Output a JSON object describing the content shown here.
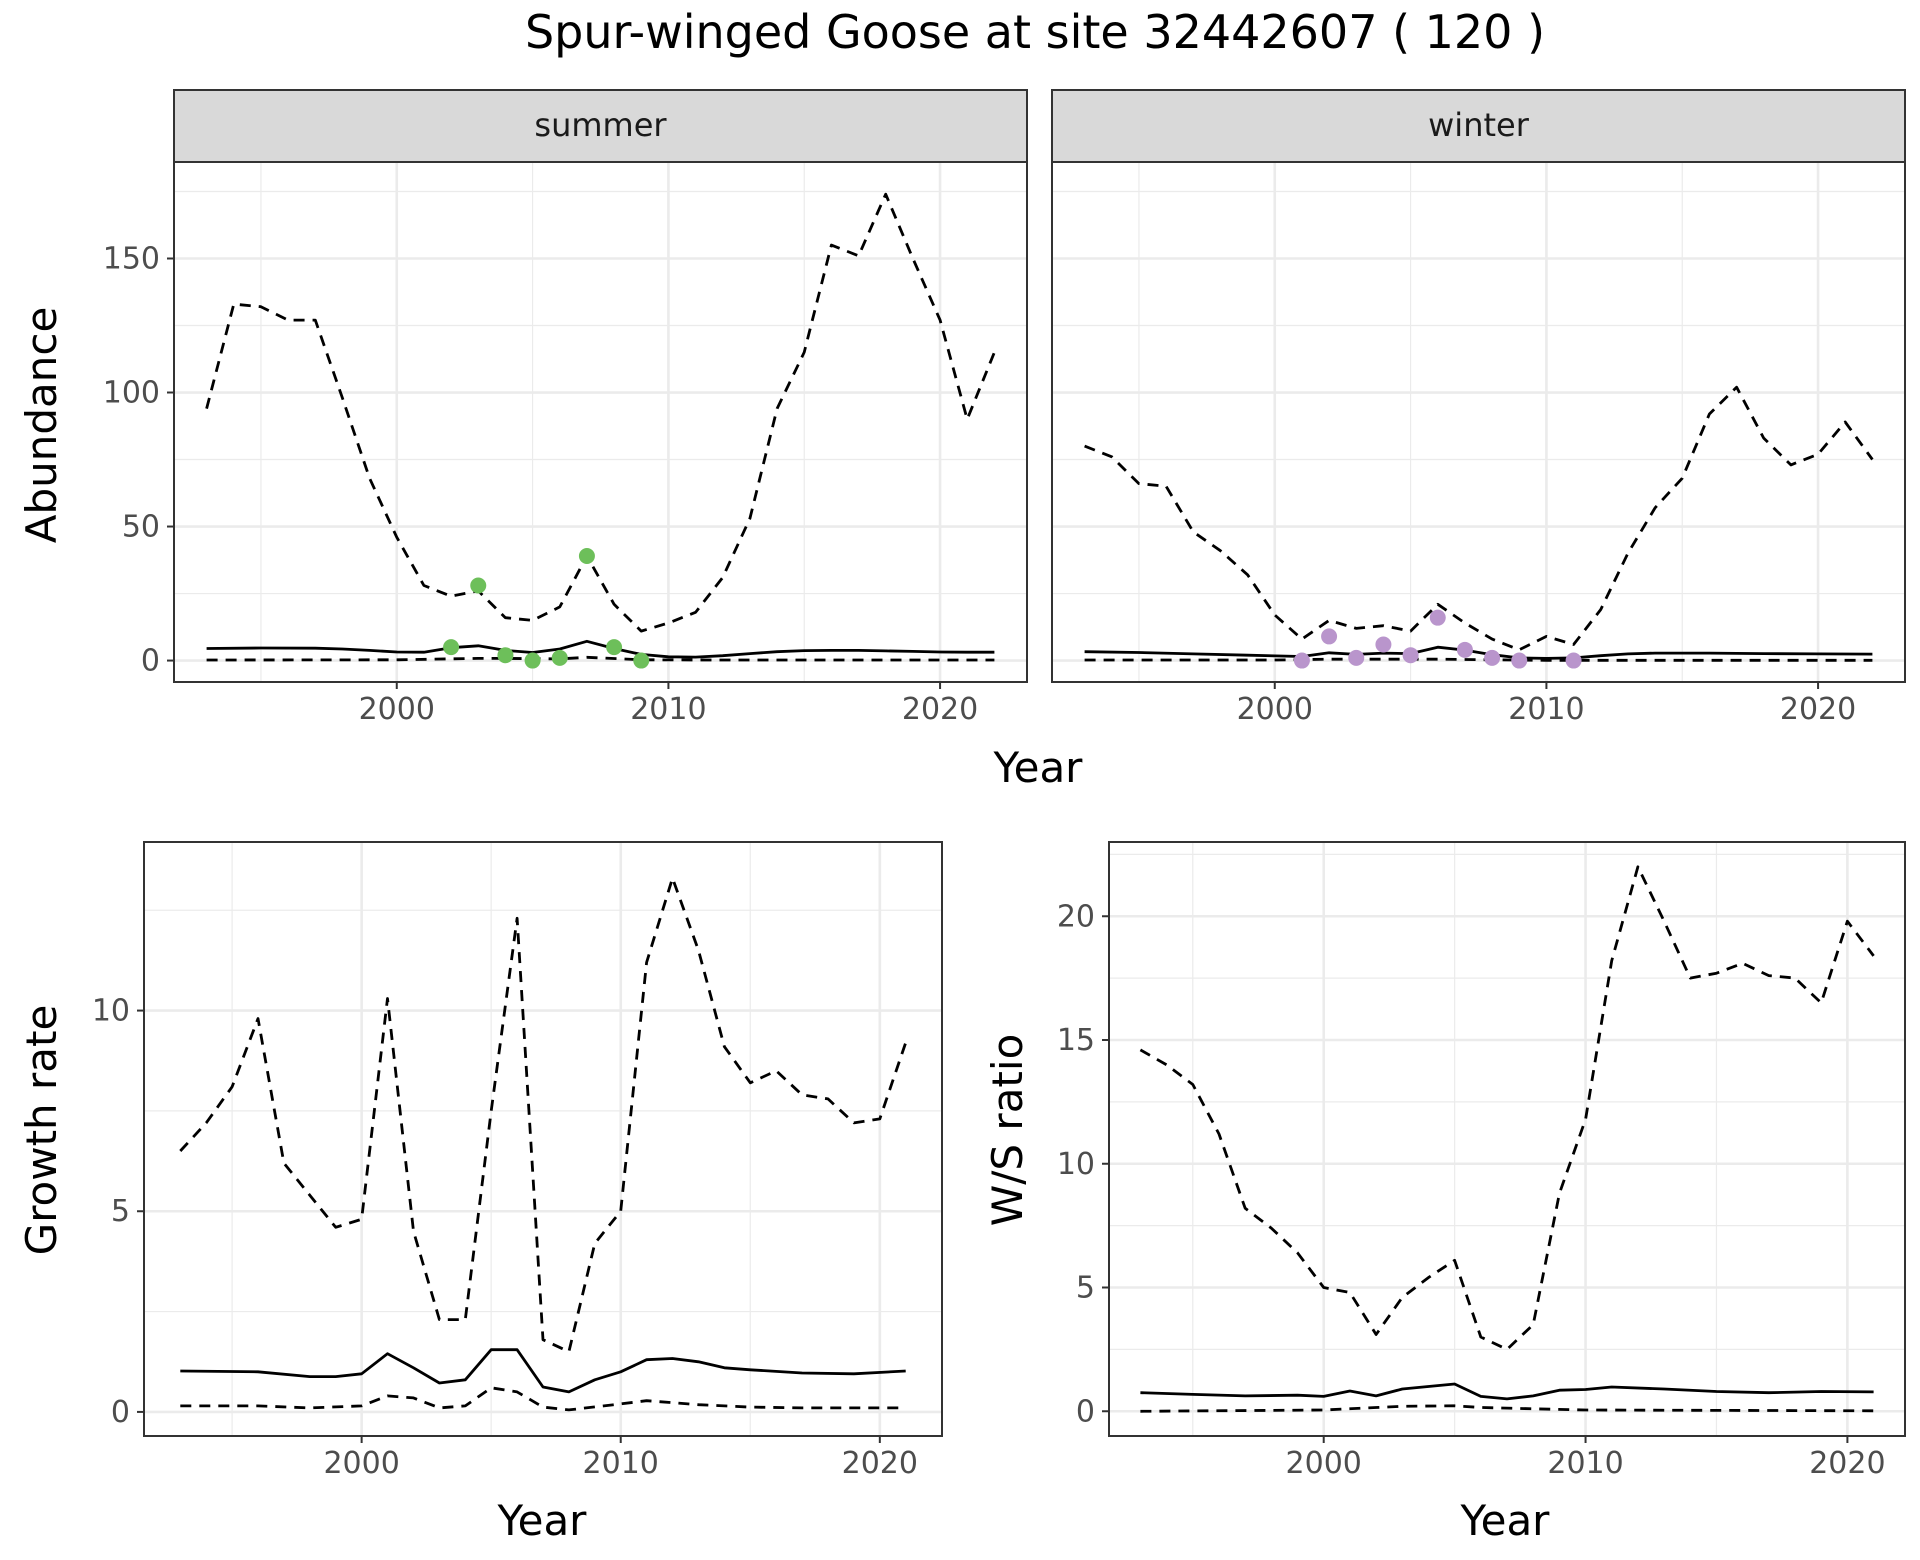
{
  "title": "Spur-winged Goose at site 32442607 ( 120 )",
  "colors": {
    "summer_points": "#6dbf5a",
    "winter_points": "#b995cc",
    "line": "#000000",
    "panel_border": "#333333",
    "strip_fill": "#d9d9d9",
    "grid": "#ebebeb"
  },
  "chart_data": [
    {
      "type": "line",
      "id": "abundance",
      "facets": [
        "summer",
        "winter"
      ],
      "xlabel": "Year",
      "ylabel": "Abundance",
      "xlim": [
        1991.8,
        2023.2
      ],
      "ylim": [
        -8,
        186
      ],
      "x_ticks": [
        2000,
        2010,
        2020
      ],
      "y_ticks": [
        0,
        50,
        100,
        150
      ],
      "grid": true,
      "panels": [
        {
          "facet": "summer",
          "points_color": "#6dbf5a",
          "series": [
            {
              "style": "solid",
              "x": [
                1993,
                1995,
                1997,
                1998,
                1999,
                2000,
                2001,
                2002,
                2003,
                2004,
                2005,
                2006,
                2007,
                2008,
                2009,
                2010,
                2011,
                2012,
                2013,
                2014,
                2015,
                2016,
                2017,
                2018,
                2019,
                2020,
                2021,
                2022
              ],
              "y": [
                4.5,
                4.7,
                4.6,
                4.3,
                3.8,
                3.2,
                3.1,
                4.8,
                5.5,
                3.8,
                3.0,
                4.3,
                7.2,
                4.5,
                2.3,
                1.4,
                1.3,
                1.8,
                2.6,
                3.3,
                3.7,
                3.8,
                3.8,
                3.6,
                3.4,
                3.2,
                3.1,
                3.1
              ]
            },
            {
              "style": "dashed",
              "x": [
                1993,
                1994,
                1995,
                1996,
                1997,
                1998,
                1999,
                2000,
                2001,
                2002,
                2003,
                2004,
                2005,
                2006,
                2007,
                2008,
                2009,
                2010,
                2011,
                2012,
                2013,
                2014,
                2015,
                2016,
                2017,
                2018,
                2019,
                2020,
                2021,
                2022
              ],
              "y": [
                94,
                133,
                132,
                127,
                127,
                98,
                68,
                46,
                28,
                24,
                26,
                16,
                15,
                20,
                39,
                21,
                11,
                14,
                18,
                31,
                53,
                94,
                115,
                155,
                151,
                174,
                150,
                127,
                90,
                115
              ]
            },
            {
              "style": "dashed",
              "x": [
                1993,
                2000,
                2003,
                2004,
                2006,
                2007,
                2009,
                2012,
                2022
              ],
              "y": [
                0.2,
                0.3,
                0.8,
                0.8,
                0.6,
                1.2,
                0.3,
                0.2,
                0.2
              ]
            }
          ],
          "points": {
            "x": [
              2002,
              2003,
              2004,
              2005,
              2006,
              2007,
              2008,
              2009
            ],
            "y": [
              5,
              28,
              2,
              0,
              1,
              39,
              5,
              0
            ]
          }
        },
        {
          "facet": "winter",
          "points_color": "#b995cc",
          "series": [
            {
              "style": "solid",
              "x": [
                1993,
                1995,
                1997,
                1999,
                2001,
                2002,
                2003,
                2004,
                2005,
                2006,
                2007,
                2008,
                2009,
                2010,
                2011,
                2012,
                2013,
                2014,
                2016,
                2018,
                2020,
                2022
              ],
              "y": [
                3.3,
                3.0,
                2.5,
                2.0,
                1.5,
                2.9,
                2.3,
                2.8,
                2.6,
                5.0,
                3.9,
                2.2,
                1.0,
                0.8,
                1.0,
                1.8,
                2.5,
                2.8,
                2.8,
                2.6,
                2.5,
                2.4
              ]
            },
            {
              "style": "dashed",
              "x": [
                1993,
                1994,
                1995,
                1996,
                1997,
                1998,
                1999,
                2000,
                2001,
                2002,
                2003,
                2004,
                2005,
                2006,
                2007,
                2008,
                2009,
                2010,
                2011,
                2012,
                2013,
                2014,
                2015,
                2016,
                2017,
                2018,
                2019,
                2020,
                2021,
                2022
              ],
              "y": [
                80,
                76,
                66,
                65,
                48,
                41,
                32,
                17,
                8,
                15,
                12,
                13,
                11,
                21,
                14,
                8,
                4,
                9,
                6,
                19,
                40,
                57,
                68,
                92,
                102,
                83,
                73,
                77,
                89,
                75
              ]
            },
            {
              "style": "dashed",
              "x": [
                1993,
                2000,
                2002,
                2004,
                2006,
                2008,
                2010,
                2022
              ],
              "y": [
                0.2,
                0.2,
                0.5,
                0.5,
                0.5,
                0.3,
                0.1,
                0.1
              ]
            }
          ],
          "points": {
            "x": [
              2001,
              2002,
              2003,
              2004,
              2005,
              2006,
              2007,
              2008,
              2009,
              2011
            ],
            "y": [
              0,
              9,
              1,
              6,
              2,
              16,
              4,
              1,
              0,
              0
            ]
          }
        }
      ]
    },
    {
      "type": "line",
      "id": "growth",
      "xlabel": "Year",
      "ylabel": "Growth rate",
      "xlim": [
        1991.6,
        2022.4
      ],
      "ylim": [
        -0.6,
        14.2
      ],
      "x_ticks": [
        2000,
        2010,
        2020
      ],
      "y_ticks": [
        0,
        5,
        10
      ],
      "grid": true,
      "series": [
        {
          "style": "solid",
          "x": [
            1993,
            1996,
            1998,
            1999,
            2000,
            2001,
            2002,
            2003,
            2004,
            2005,
            2006,
            2007,
            2008,
            2009,
            2010,
            2011,
            2012,
            2013,
            2014,
            2015,
            2017,
            2019,
            2021
          ],
          "y": [
            1.02,
            1.0,
            0.88,
            0.88,
            0.95,
            1.45,
            1.1,
            0.72,
            0.8,
            1.55,
            1.55,
            0.62,
            0.5,
            0.8,
            1.0,
            1.3,
            1.33,
            1.25,
            1.1,
            1.05,
            0.97,
            0.95,
            1.02
          ]
        },
        {
          "style": "dashed",
          "x": [
            1993,
            1994,
            1995,
            1996,
            1997,
            1998,
            1999,
            2000,
            2001,
            2002,
            2003,
            2004,
            2005,
            2006,
            2007,
            2008,
            2009,
            2010,
            2011,
            2012,
            2013,
            2014,
            2015,
            2016,
            2017,
            2018,
            2019,
            2020,
            2021
          ],
          "y": [
            6.5,
            7.2,
            8.1,
            9.8,
            6.2,
            5.4,
            4.6,
            4.8,
            10.3,
            4.5,
            2.3,
            2.3,
            7.5,
            12.3,
            1.8,
            1.5,
            4.2,
            5.0,
            11.2,
            13.3,
            11.5,
            9.1,
            8.2,
            8.5,
            7.9,
            7.8,
            7.2,
            7.3,
            9.2
          ]
        },
        {
          "style": "dashed",
          "x": [
            1993,
            1996,
            1998,
            2000,
            2001,
            2002,
            2003,
            2004,
            2005,
            2006,
            2007,
            2008,
            2010,
            2011,
            2013,
            2015,
            2017,
            2021
          ],
          "y": [
            0.15,
            0.15,
            0.1,
            0.15,
            0.4,
            0.35,
            0.1,
            0.15,
            0.6,
            0.5,
            0.12,
            0.05,
            0.2,
            0.28,
            0.18,
            0.12,
            0.1,
            0.1
          ]
        }
      ]
    },
    {
      "type": "line",
      "id": "ratio",
      "xlabel": "Year",
      "ylabel": "W/S ratio",
      "xlim": [
        1991.8,
        2022.2
      ],
      "ylim": [
        -1,
        23
      ],
      "x_ticks": [
        2000,
        2010,
        2020
      ],
      "y_ticks": [
        0,
        5,
        10,
        15,
        20
      ],
      "grid": true,
      "series": [
        {
          "style": "solid",
          "x": [
            1993,
            1995,
            1997,
            1999,
            2000,
            2001,
            2002,
            2003,
            2004,
            2005,
            2006,
            2007,
            2008,
            2009,
            2010,
            2011,
            2013,
            2015,
            2017,
            2019,
            2021
          ],
          "y": [
            0.75,
            0.68,
            0.62,
            0.65,
            0.6,
            0.82,
            0.62,
            0.9,
            1.0,
            1.1,
            0.6,
            0.5,
            0.62,
            0.85,
            0.88,
            0.98,
            0.9,
            0.8,
            0.75,
            0.8,
            0.78
          ]
        },
        {
          "style": "dashed",
          "x": [
            1993,
            1994,
            1995,
            1996,
            1997,
            1998,
            1999,
            2000,
            2001,
            2002,
            2003,
            2004,
            2005,
            2006,
            2007,
            2008,
            2009,
            2010,
            2011,
            2012,
            2013,
            2014,
            2015,
            2016,
            2017,
            2018,
            2019,
            2020,
            2021
          ],
          "y": [
            14.6,
            14.0,
            13.2,
            11.2,
            8.2,
            7.4,
            6.4,
            5.0,
            4.8,
            3.1,
            4.6,
            5.4,
            6.1,
            3.0,
            2.5,
            3.5,
            8.8,
            11.8,
            18.2,
            22.0,
            19.8,
            17.5,
            17.7,
            18.1,
            17.6,
            17.5,
            16.5,
            19.8,
            18.4
          ]
        },
        {
          "style": "dashed",
          "x": [
            1993,
            2000,
            2002,
            2003,
            2005,
            2006,
            2008,
            2010,
            2021
          ],
          "y": [
            0.0,
            0.05,
            0.15,
            0.2,
            0.22,
            0.15,
            0.1,
            0.05,
            0.02
          ]
        }
      ]
    }
  ]
}
